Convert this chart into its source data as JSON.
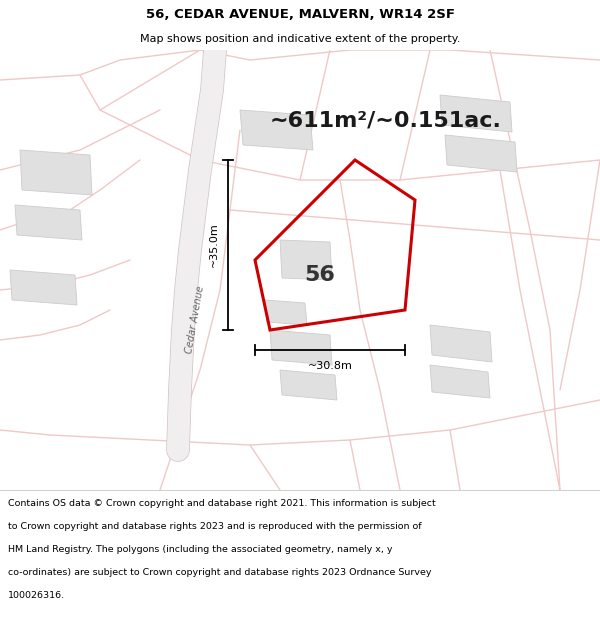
{
  "title_line1": "56, CEDAR AVENUE, MALVERN, WR14 2SF",
  "title_line2": "Map shows position and indicative extent of the property.",
  "area_text": "~611m²/~0.151ac.",
  "plot_number": "56",
  "dim_width_label": "~30.8m",
  "dim_height_label": "~35.0m",
  "road_label": "Cedar Avenue",
  "footer_lines": [
    "Contains OS data © Crown copyright and database right 2021. This information is subject",
    "to Crown copyright and database rights 2023 and is reproduced with the permission of",
    "HM Land Registry. The polygons (including the associated geometry, namely x, y",
    "co-ordinates) are subject to Crown copyright and database rights 2023 Ordnance Survey",
    "100026316."
  ],
  "bg_color": "#ffffff",
  "map_bg_color": "#f8f6f6",
  "road_color": "#f0c8c8",
  "road_lw": 1.5,
  "cedar_ave_color": "#f5f5f5",
  "cedar_ave_edge": "#e0e0e0",
  "plot_outline_color": "#cc0000",
  "building_color": "#e0e0e0",
  "building_edge_color": "#cccccc",
  "dim_line_color": "#000000",
  "title_color": "#000000",
  "footer_color": "#000000"
}
